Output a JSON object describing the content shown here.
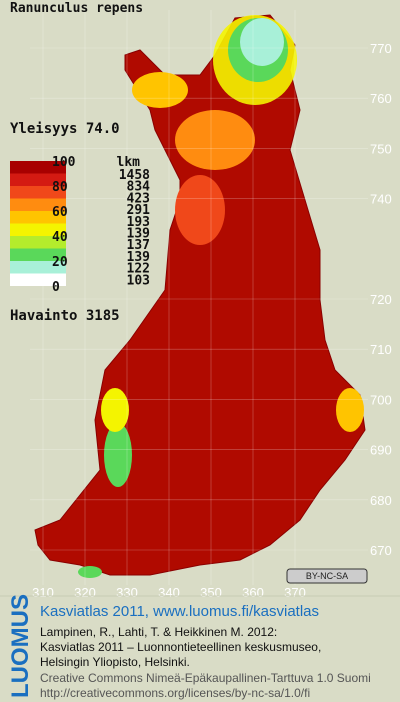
{
  "title": "Ranunculus repens",
  "frequency": "Yleisyys 74.0",
  "legend": {
    "scale_labels": [
      "100",
      "80",
      "60",
      "40",
      "20",
      "0"
    ],
    "count_header": "lkm",
    "counts": [
      "1458",
      "834",
      "423",
      "291",
      "193",
      "139",
      "137",
      "139",
      "122",
      "103"
    ],
    "colors": [
      "#a80000",
      "#d41a12",
      "#f0481a",
      "#ff8c10",
      "#ffc400",
      "#f4f400",
      "#b4ec2c",
      "#5ad85a",
      "#a8f0d8",
      "#ffffff"
    ]
  },
  "observations": "Havainto 3185",
  "grid": {
    "x_labels": [
      310,
      320,
      330,
      340,
      350,
      360,
      370
    ],
    "y_labels": [
      770,
      760,
      750,
      740,
      720,
      710,
      700,
      690,
      680,
      670
    ]
  },
  "license_badge": "BY-NC-SA",
  "footer": {
    "logo": "LUOMUS",
    "heading": "Kasviatlas 2011, www.luomus.fi/kasviatlas",
    "citation": [
      "Lampinen, R., Lahti, T. & Heikkinen M. 2012:",
      "Kasviatlas 2011 – Luonnontieteellinen keskusmuseo,",
      "Helsingin Yliopisto, Helsinki."
    ],
    "license": [
      "Creative Commons Nimeä-Epäkaupallinen-Tarttuva 1.0 Suomi",
      "http://creativecommons.org/licenses/by-nc-sa/1.0/fi"
    ]
  }
}
